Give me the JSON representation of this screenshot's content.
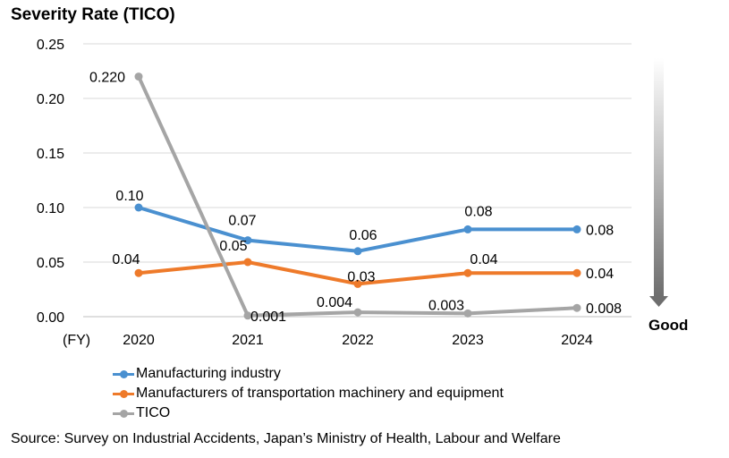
{
  "title": "Severity Rate (TICO)",
  "source": "Source: Survey on Industrial Accidents, Japan’s Ministry of Health, Labour and Welfare",
  "good_label": "Good",
  "chart_data": {
    "type": "line",
    "title": "Severity Rate (TICO)",
    "xlabel": "(FY)",
    "ylabel": "",
    "categories": [
      "2020",
      "2021",
      "2022",
      "2023",
      "2024"
    ],
    "ylim": [
      0,
      0.25
    ],
    "yticks": [
      "0.00",
      "0.05",
      "0.10",
      "0.15",
      "0.20",
      "0.25"
    ],
    "grid": true,
    "legend_position": "bottom-left",
    "series": [
      {
        "name": "Manufacturing industry",
        "color": "#4a90d0",
        "values": [
          0.1,
          0.07,
          0.06,
          0.08,
          0.08
        ],
        "labels": [
          "0.10",
          "0.07",
          "0.06",
          "0.08",
          "0.08"
        ]
      },
      {
        "name": "Manufacturers of transportation machinery and equipment",
        "color": "#ee7a2a",
        "values": [
          0.04,
          0.05,
          0.03,
          0.04,
          0.04
        ],
        "labels": [
          "0.04",
          "0.05",
          "0.03",
          "0.04",
          "0.04"
        ]
      },
      {
        "name": "TICO",
        "color": "#a5a5a5",
        "values": [
          0.22,
          0.001,
          0.004,
          0.003,
          0.008
        ],
        "labels": [
          "0.220",
          "0.001",
          "0.004",
          "0.003",
          "0.008"
        ]
      }
    ]
  }
}
